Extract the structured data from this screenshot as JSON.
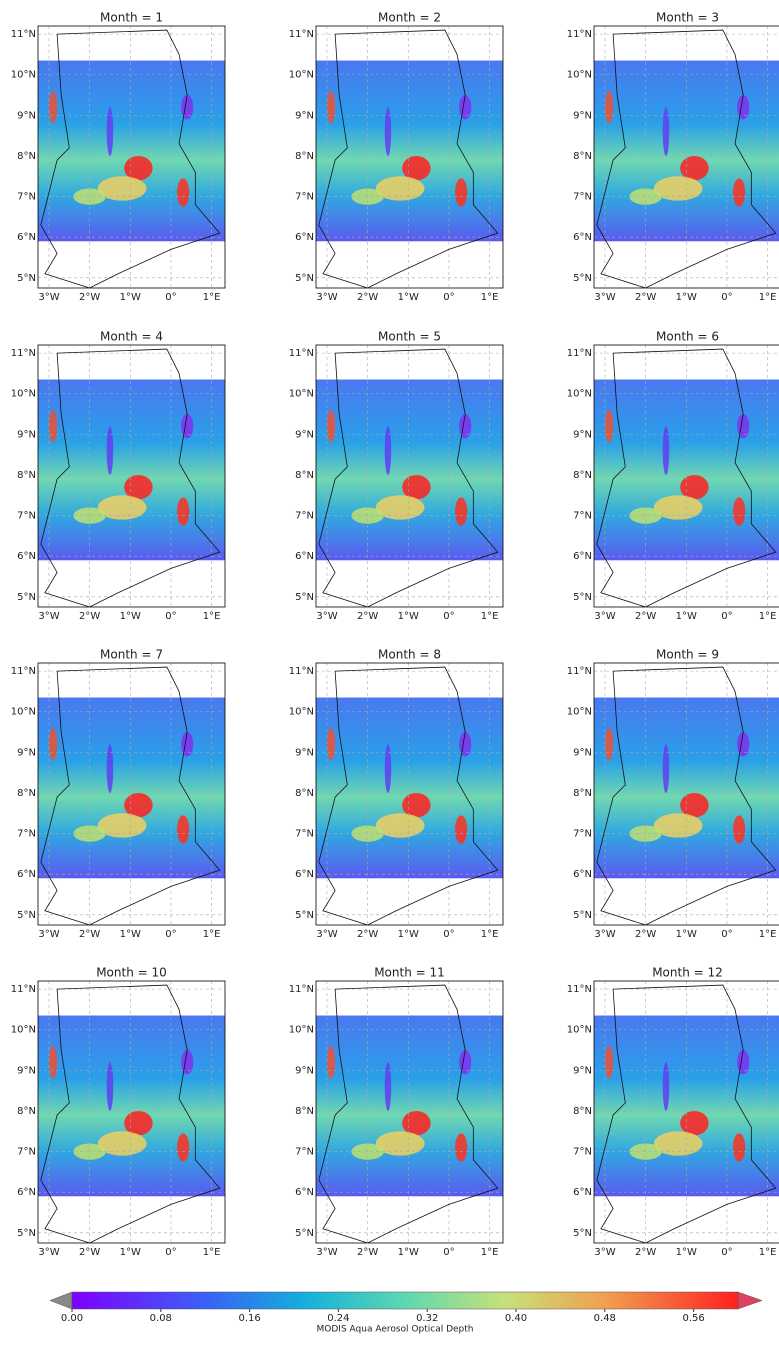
{
  "panels": [
    {
      "title": "Month = 1"
    },
    {
      "title": "Month = 2"
    },
    {
      "title": "Month = 3"
    },
    {
      "title": "Month = 4"
    },
    {
      "title": "Month = 5"
    },
    {
      "title": "Month = 6"
    },
    {
      "title": "Month = 7"
    },
    {
      "title": "Month = 8"
    },
    {
      "title": "Month = 9"
    },
    {
      "title": "Month = 10"
    },
    {
      "title": "Month = 11"
    },
    {
      "title": "Month = 12"
    }
  ],
  "extent": {
    "lon": [
      -3.27,
      1.33
    ],
    "lat": [
      4.75,
      11.2
    ]
  },
  "lat_ticks": [
    {
      "value": 11,
      "label": "11°N"
    },
    {
      "value": 10,
      "label": "10°N"
    },
    {
      "value": 9,
      "label": "9°N"
    },
    {
      "value": 8,
      "label": "8°N"
    },
    {
      "value": 7,
      "label": "7°N"
    },
    {
      "value": 6,
      "label": "6°N"
    },
    {
      "value": 5,
      "label": "5°N"
    }
  ],
  "lon_ticks": [
    {
      "value": -3,
      "label": "3°W"
    },
    {
      "value": -2,
      "label": "2°W"
    },
    {
      "value": -1,
      "label": "1°W"
    },
    {
      "value": 0,
      "label": "0°"
    },
    {
      "value": 1,
      "label": "1°E"
    }
  ],
  "colorbar": {
    "label": "MODIS Aqua Aerosol Optical Depth",
    "lim": [
      0,
      0.6
    ],
    "ticks": [
      {
        "value": 0,
        "label": "0.00"
      },
      0.08,
      0.16,
      0.24,
      0.32,
      {
        "value": 0.4,
        "label": "0.40"
      },
      0.48,
      0.56
    ]
  }
}
